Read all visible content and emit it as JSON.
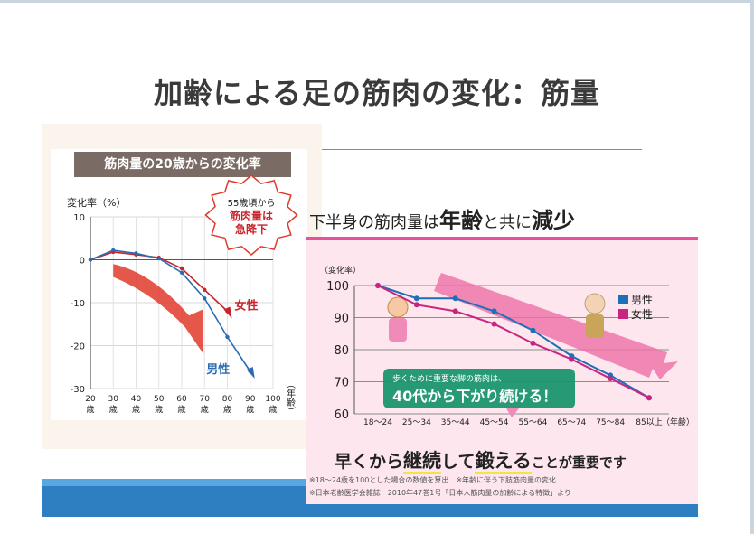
{
  "slide": {
    "title": "加齢による足の筋肉の変化：筋量"
  },
  "left_chart": {
    "header": "筋肉量の20歳からの変化率",
    "ylabel": "変化率（%）",
    "xlabel": "（年齢）",
    "callout": [
      "55歳頃から",
      "筋肉量は",
      "急降下"
    ],
    "colors": {
      "male": "#2b6cb0",
      "female": "#c8242b",
      "arrow": "#e03a2a"
    }
  },
  "right_chart": {
    "title_parts": [
      "下半身の筋肉量は",
      "年齢",
      "と共に",
      "減少"
    ],
    "ylabel": "（変化率）",
    "xlabel": "（年齢）",
    "bubble_line1": "歩くために重要な脚の筋肉は、",
    "bubble_line2": "40代から下がり続ける！",
    "keep_parts": [
      "早くから",
      "継続",
      "して",
      "鍛える",
      "ことが重要です"
    ],
    "note1": "※18～24歳を100とした場合の数値を算出　※年齢に伴う下肢筋肉量の変化",
    "note2": "※日本老齢医学会雑誌　2010年47巻1号「日本人筋肉量の加齢による特徴」より",
    "colors": {
      "male": "#1f6fb8",
      "female": "#c8267e",
      "arrow": "#ee6fa5"
    }
  },
  "chart_data": [
    {
      "type": "line",
      "title": "筋肉量の20歳からの変化率",
      "xlabel": "（年齢）",
      "ylabel": "変化率（%）",
      "categories": [
        "20歳",
        "30歳",
        "40歳",
        "50歳",
        "60歳",
        "70歳",
        "80歳",
        "90歳",
        "100歳"
      ],
      "x": [
        20,
        30,
        40,
        50,
        60,
        70,
        80,
        90,
        100
      ],
      "ylim": [
        -30,
        10
      ],
      "yticks": [
        10,
        0,
        -10,
        -20,
        -30
      ],
      "grid": true,
      "series": [
        {
          "name": "女性",
          "x": [
            20,
            30,
            40,
            50,
            60,
            70,
            80
          ],
          "values": [
            0,
            1.8,
            1.2,
            0.5,
            -2,
            -7,
            -12
          ]
        },
        {
          "name": "男性",
          "x": [
            20,
            30,
            40,
            50,
            60,
            70,
            80,
            90
          ],
          "values": [
            0,
            2.2,
            1.5,
            0.3,
            -3,
            -9,
            -18,
            -26
          ]
        }
      ]
    },
    {
      "type": "line",
      "title": "下半身の筋肉量は年齢と共に減少",
      "ylabel": "（変化率）",
      "xlabel": "（年齢）",
      "categories": [
        "18～24",
        "25～34",
        "35～44",
        "45～54",
        "55～64",
        "65～74",
        "75～84",
        "85以上"
      ],
      "ylim": [
        60,
        100
      ],
      "yticks": [
        100,
        90,
        80,
        70,
        60
      ],
      "grid": true,
      "legend": "top-right",
      "series": [
        {
          "name": "男性",
          "values": [
            100,
            96,
            96,
            92,
            86,
            78,
            72,
            65
          ]
        },
        {
          "name": "女性",
          "values": [
            100,
            94,
            92,
            88,
            82,
            77,
            71,
            65
          ]
        }
      ]
    }
  ]
}
